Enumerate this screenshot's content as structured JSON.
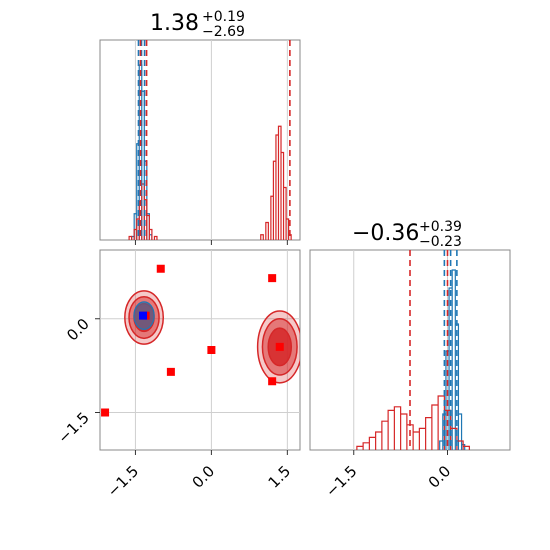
{
  "chart_data": [
    {
      "panel": "marginal-x",
      "type": "histogram",
      "title_main": "1.38",
      "title_sup": "+0.19",
      "title_sub": "−2.69",
      "xlim": [
        -2.2,
        1.75
      ],
      "grid": true,
      "series": [
        {
          "name": "",
          "color": "#1f77b4",
          "bins": [
            [
              -1.55,
              0.02
            ],
            [
              -1.5,
              0.15
            ],
            [
              -1.45,
              0.55
            ],
            [
              -1.4,
              1.0
            ],
            [
              -1.35,
              0.85
            ],
            [
              -1.3,
              0.45
            ],
            [
              -1.25,
              0.15
            ],
            [
              -1.2,
              0.03
            ]
          ]
        },
        {
          "name": "",
          "color": "#d62728",
          "bins": [
            [
              -1.6,
              0.02
            ],
            [
              -1.5,
              0.06
            ],
            [
              -1.45,
              0.12
            ],
            [
              -1.4,
              0.22
            ],
            [
              -1.35,
              0.32
            ],
            [
              -1.3,
              0.23
            ],
            [
              -1.25,
              0.14
            ],
            [
              -1.2,
              0.06
            ],
            [
              -1.1,
              0.02
            ],
            [
              1.0,
              0.03
            ],
            [
              1.1,
              0.1
            ],
            [
              1.2,
              0.25
            ],
            [
              1.25,
              0.45
            ],
            [
              1.3,
              0.6
            ],
            [
              1.35,
              0.65
            ],
            [
              1.4,
              0.5
            ],
            [
              1.45,
              0.3
            ],
            [
              1.5,
              0.12
            ],
            [
              1.55,
              0.03
            ]
          ]
        }
      ],
      "vlines_blue": [
        -1.44,
        -1.38,
        -1.32
      ],
      "vlines_red": [
        -1.4,
        -1.28,
        1.55
      ]
    },
    {
      "panel": "marginal-y",
      "type": "histogram",
      "title_main": "−0.36",
      "title_sup": "+0.39",
      "title_sub": "−0.23",
      "xlim": [
        -2.2,
        1.0
      ],
      "grid": true,
      "xticks": [
        "−1.5",
        "0.0"
      ],
      "xtick_values": [
        -1.5,
        0.0
      ],
      "series": [
        {
          "name": "",
          "color": "#1f77b4",
          "bins": [
            [
              -0.1,
              0.05
            ],
            [
              -0.05,
              0.2
            ],
            [
              0.0,
              0.55
            ],
            [
              0.05,
              0.9
            ],
            [
              0.1,
              1.0
            ],
            [
              0.15,
              0.7
            ],
            [
              0.2,
              0.2
            ],
            [
              0.25,
              0.03
            ]
          ]
        },
        {
          "name": "",
          "color": "#d62728",
          "bins": [
            [
              -1.4,
              0.02
            ],
            [
              -1.3,
              0.04
            ],
            [
              -1.2,
              0.07
            ],
            [
              -1.1,
              0.1
            ],
            [
              -1.0,
              0.16
            ],
            [
              -0.9,
              0.22
            ],
            [
              -0.8,
              0.24
            ],
            [
              -0.7,
              0.2
            ],
            [
              -0.6,
              0.14
            ],
            [
              -0.5,
              0.1
            ],
            [
              -0.4,
              0.12
            ],
            [
              -0.3,
              0.18
            ],
            [
              -0.2,
              0.25
            ],
            [
              -0.1,
              0.3
            ],
            [
              0.0,
              0.22
            ],
            [
              0.1,
              0.12
            ],
            [
              0.2,
              0.05
            ],
            [
              0.3,
              0.02
            ]
          ]
        }
      ],
      "vlines_blue": [
        -0.05,
        0.05,
        0.15
      ],
      "vlines_red": [
        -0.6,
        0.0
      ]
    },
    {
      "panel": "joint",
      "type": "scatter",
      "xlim": [
        -2.2,
        1.75
      ],
      "ylim": [
        -2.1,
        1.1
      ],
      "grid": true,
      "xticks": [
        "−1.5",
        "0.0",
        "1.5"
      ],
      "xtick_values": [
        -1.5,
        0.0,
        1.5
      ],
      "yticks": [
        "0.0",
        "−1.5"
      ],
      "ytick_values": [
        0.0,
        -1.5
      ],
      "red_squares": [
        [
          -1.0,
          0.8
        ],
        [
          -1.3,
          0.05
        ],
        [
          1.2,
          0.65
        ],
        [
          -0.8,
          -0.85
        ],
        [
          0.0,
          -0.5
        ],
        [
          1.2,
          -1.0
        ],
        [
          -2.1,
          -1.5
        ],
        [
          1.35,
          -0.45
        ]
      ],
      "blue_squares": [
        [
          -1.35,
          0.05
        ]
      ],
      "contours": [
        {
          "cx": -1.33,
          "cy": 0.02,
          "rx": 0.33,
          "ry": 0.37,
          "color": "#d62728"
        },
        {
          "cx": 1.35,
          "cy": -0.45,
          "rx": 0.38,
          "ry": 0.5,
          "color": "#d62728"
        },
        {
          "cx": -1.33,
          "cy": 0.05,
          "rx": 0.2,
          "ry": 0.22,
          "color": "#1f77b4"
        }
      ]
    }
  ]
}
